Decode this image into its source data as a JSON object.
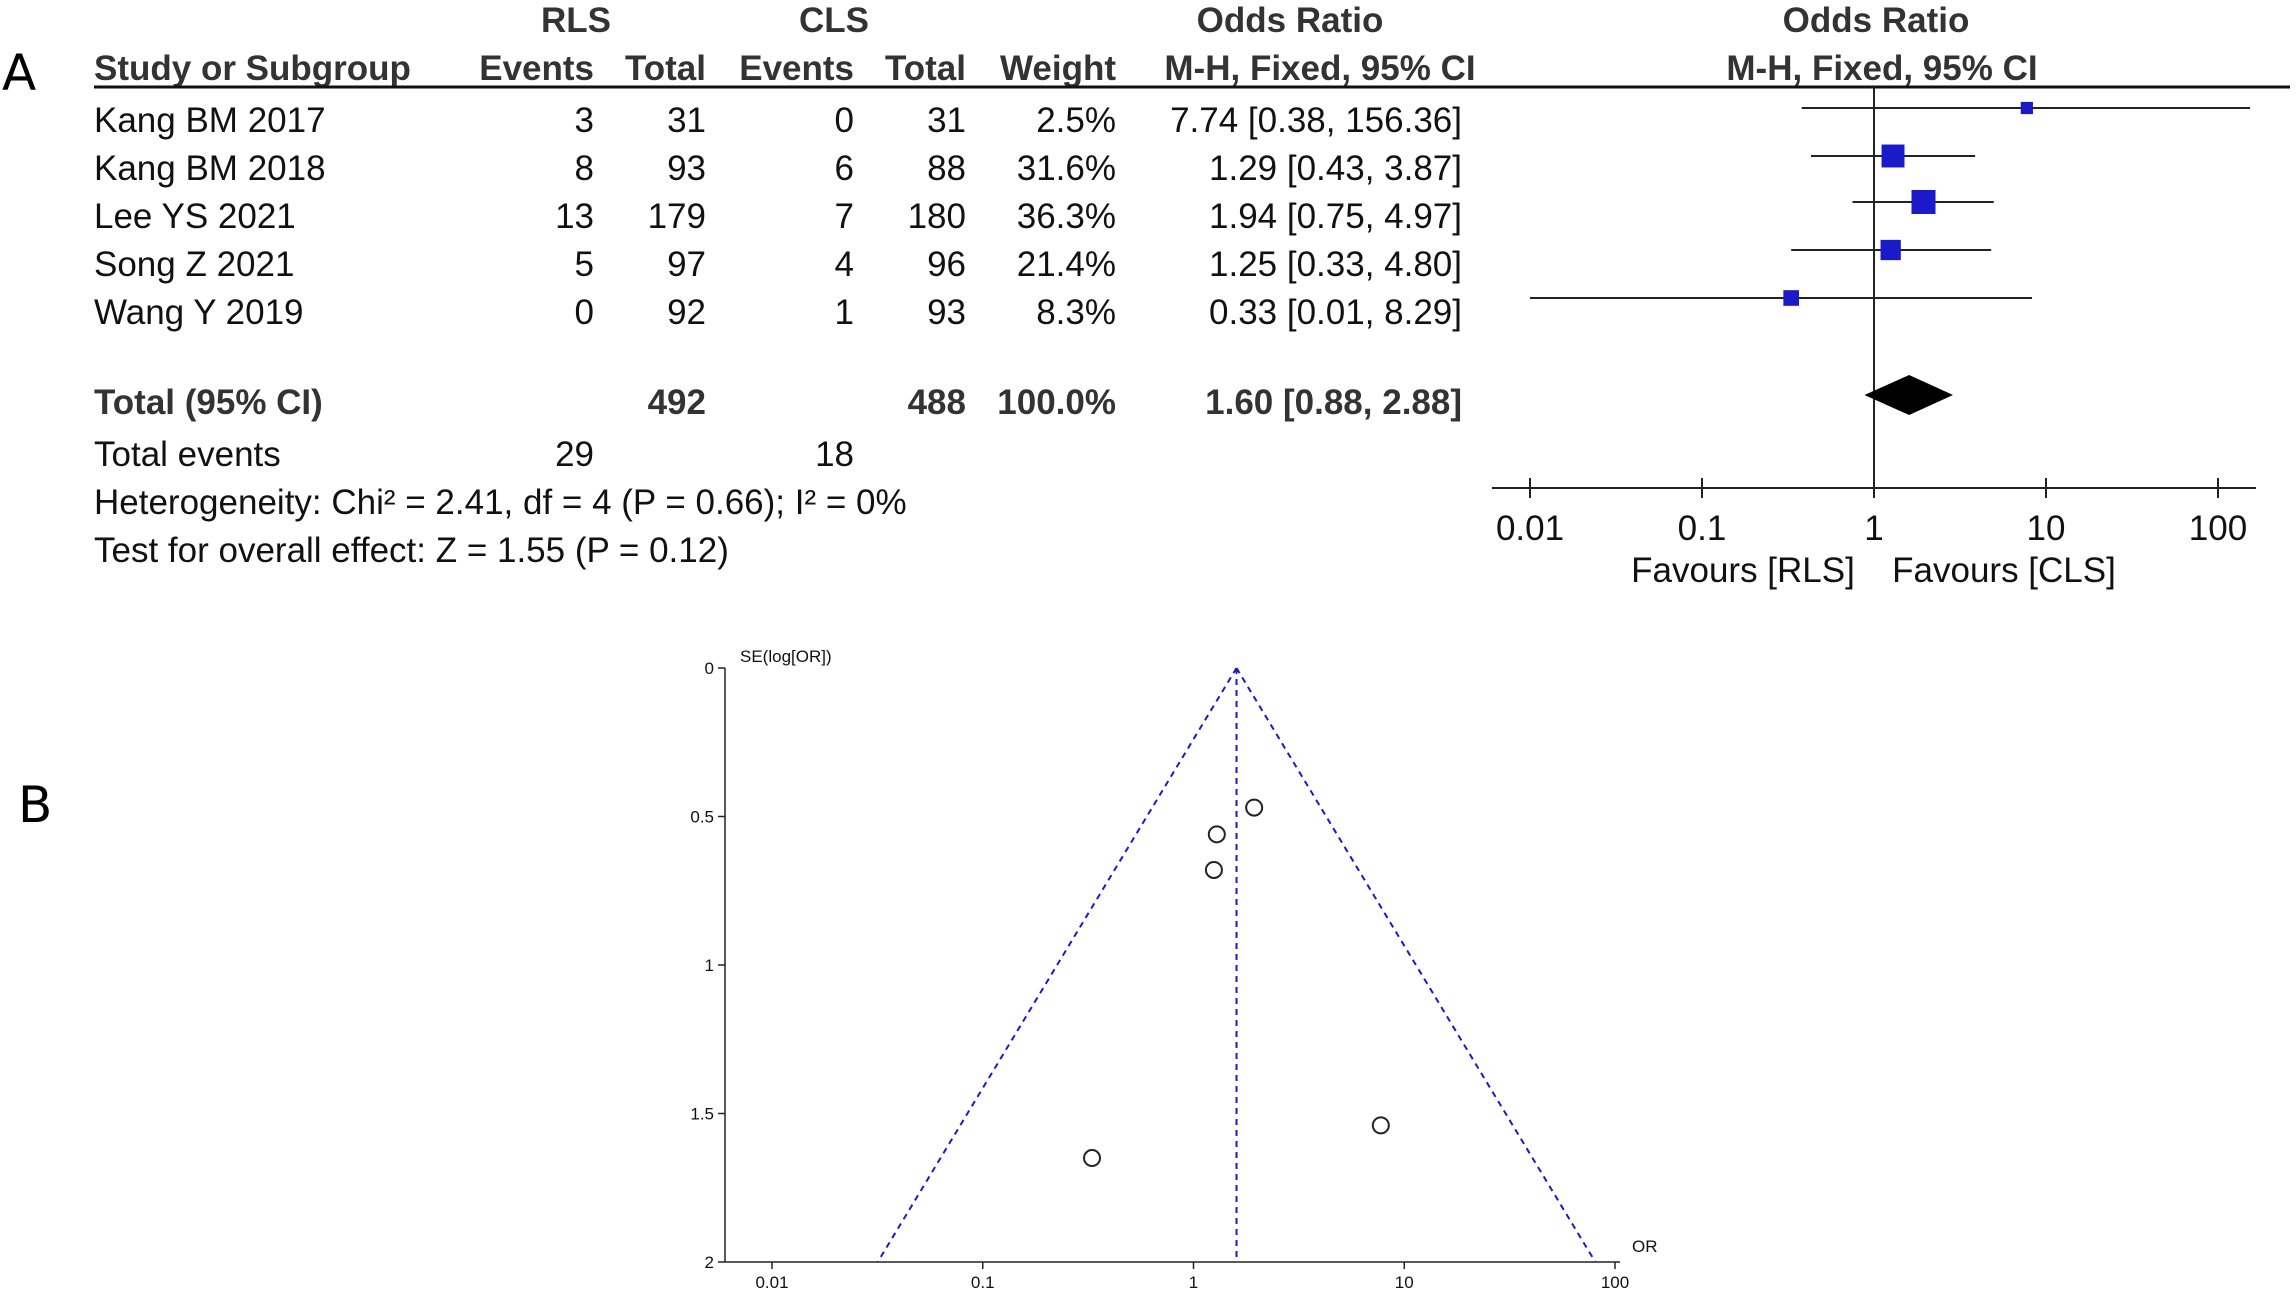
{
  "panel_labels": {
    "a": "A",
    "b": "B"
  },
  "forest": {
    "group_headers": {
      "rls": "RLS",
      "cls": "CLS",
      "or_table": "Odds Ratio",
      "or_plot": "Odds Ratio"
    },
    "col_headers": {
      "study": "Study or Subgroup",
      "rls_events": "Events",
      "rls_total": "Total",
      "cls_events": "Events",
      "cls_total": "Total",
      "weight": "Weight",
      "or_method_table": "M-H, Fixed, 95% CI",
      "or_method_plot": "M-H, Fixed, 95% CI"
    },
    "studies": [
      {
        "name": "Kang BM 2017",
        "rls_events": "3",
        "rls_total": "31",
        "cls_events": "0",
        "cls_total": "31",
        "weight": "2.5%",
        "or_text": "7.74 [0.38, 156.36]"
      },
      {
        "name": "Kang BM 2018",
        "rls_events": "8",
        "rls_total": "93",
        "cls_events": "6",
        "cls_total": "88",
        "weight": "31.6%",
        "or_text": "1.29 [0.43, 3.87]"
      },
      {
        "name": "Lee YS 2021",
        "rls_events": "13",
        "rls_total": "179",
        "cls_events": "7",
        "cls_total": "180",
        "weight": "36.3%",
        "or_text": "1.94 [0.75, 4.97]"
      },
      {
        "name": "Song Z 2021",
        "rls_events": "5",
        "rls_total": "97",
        "cls_events": "4",
        "cls_total": "96",
        "weight": "21.4%",
        "or_text": "1.25 [0.33, 4.80]"
      },
      {
        "name": "Wang Y 2019",
        "rls_events": "0",
        "rls_total": "92",
        "cls_events": "1",
        "cls_total": "93",
        "weight": "8.3%",
        "or_text": "0.33 [0.01, 8.29]"
      }
    ],
    "total": {
      "label": "Total (95% CI)",
      "rls_total": "492",
      "cls_total": "488",
      "weight": "100.0%",
      "or_text": "1.60 [0.88, 2.88]"
    },
    "total_events": {
      "label": "Total events",
      "rls": "29",
      "cls": "18"
    },
    "heterogeneity": "Heterogeneity: Chi² = 2.41, df = 4 (P = 0.66); I² = 0%",
    "overall_effect": "Test for overall effect: Z = 1.55 (P = 0.12)",
    "axis_ticks": [
      "0.01",
      "0.1",
      "1",
      "10",
      "100"
    ],
    "favours_left": "Favours [RLS]",
    "favours_right": "Favours [CLS]",
    "colors": {
      "square": "#1a1ac8",
      "diamond": "#000000",
      "line": "#222222"
    }
  },
  "chart_data": [
    {
      "type": "scatter",
      "title": "",
      "description": "Forest plot of odds ratios (log scale) with 95% CI",
      "xscale": "log",
      "xlim": [
        0.01,
        100
      ],
      "x_ticks": [
        0.01,
        0.1,
        1,
        10,
        100
      ],
      "reference_line": 1,
      "points": [
        {
          "study": "Kang BM 2017",
          "or": 7.74,
          "lo": 0.38,
          "hi": 156.36,
          "weight": 2.5
        },
        {
          "study": "Kang BM 2018",
          "or": 1.29,
          "lo": 0.43,
          "hi": 3.87,
          "weight": 31.6
        },
        {
          "study": "Lee YS 2021",
          "or": 1.94,
          "lo": 0.75,
          "hi": 4.97,
          "weight": 36.3
        },
        {
          "study": "Song Z 2021",
          "or": 1.25,
          "lo": 0.33,
          "hi": 4.8,
          "weight": 21.4
        },
        {
          "study": "Wang Y 2019",
          "or": 0.33,
          "lo": 0.01,
          "hi": 8.29,
          "weight": 8.3
        }
      ],
      "pooled": {
        "or": 1.6,
        "lo": 0.88,
        "hi": 2.88
      }
    },
    {
      "type": "scatter",
      "title": "",
      "xlabel": "OR",
      "ylabel": "SE(log[OR])",
      "xscale": "log",
      "xlim": [
        0.01,
        100
      ],
      "ylim": [
        0,
        2
      ],
      "y_inverted": true,
      "x_ticks": [
        "0.01",
        "0.1",
        "1",
        "10",
        "100"
      ],
      "y_ticks": [
        "0",
        "0.5",
        "1",
        "1.5",
        "2"
      ],
      "pooled_or": 1.6,
      "points": [
        {
          "x": 7.74,
          "y": 1.54
        },
        {
          "x": 1.29,
          "y": 0.56
        },
        {
          "x": 1.94,
          "y": 0.47
        },
        {
          "x": 1.25,
          "y": 0.68
        },
        {
          "x": 0.33,
          "y": 1.65
        }
      ],
      "colors": {
        "funnel": "#1a1ac8",
        "point": "#222222"
      }
    }
  ]
}
